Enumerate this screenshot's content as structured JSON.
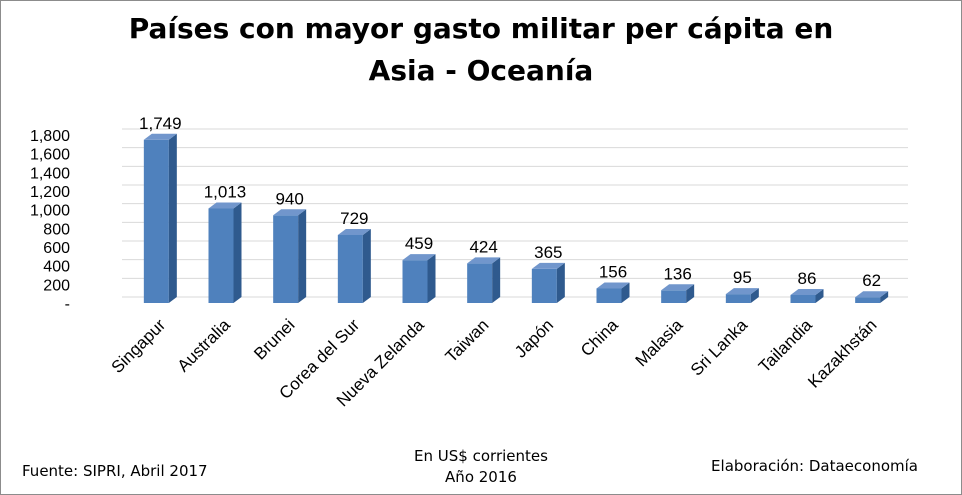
{
  "title_line1": "Países con mayor gasto militar per cápita en",
  "title_line2": "Asia - Oceanía",
  "footer": {
    "source": "Fuente: SIPRI, Abril 2017",
    "units": "En US$ corrientes",
    "year": "Año 2016",
    "credit": "Elaboración: Dataeconomía"
  },
  "colors": {
    "bar_front": "#4f81bd",
    "bar_side": "#2f5a8e",
    "bar_top": "#7196cc",
    "grid": "#d9d9d9"
  },
  "chart_data": {
    "type": "bar",
    "categories": [
      "Singapur",
      "Australia",
      "Brunei",
      "Corea del Sur",
      "Nueva Zelanda",
      "Taiwan",
      "Japón",
      "China",
      "Malasia",
      "Sri Lanka",
      "Tailandia",
      "Kazakhstán"
    ],
    "values": [
      1749,
      1013,
      940,
      729,
      459,
      424,
      365,
      156,
      136,
      95,
      86,
      62
    ],
    "value_labels": [
      "1,749",
      "1,013",
      "940",
      "729",
      "459",
      "424",
      "365",
      "156",
      "136",
      "95",
      "86",
      "62"
    ],
    "y_ticks": [
      "-",
      "200",
      "400",
      "600",
      "800",
      "1,000",
      "1,200",
      "1,400",
      "1,600",
      "1,800"
    ],
    "ylim": [
      0,
      1800
    ],
    "grid": true,
    "legend": "none"
  }
}
